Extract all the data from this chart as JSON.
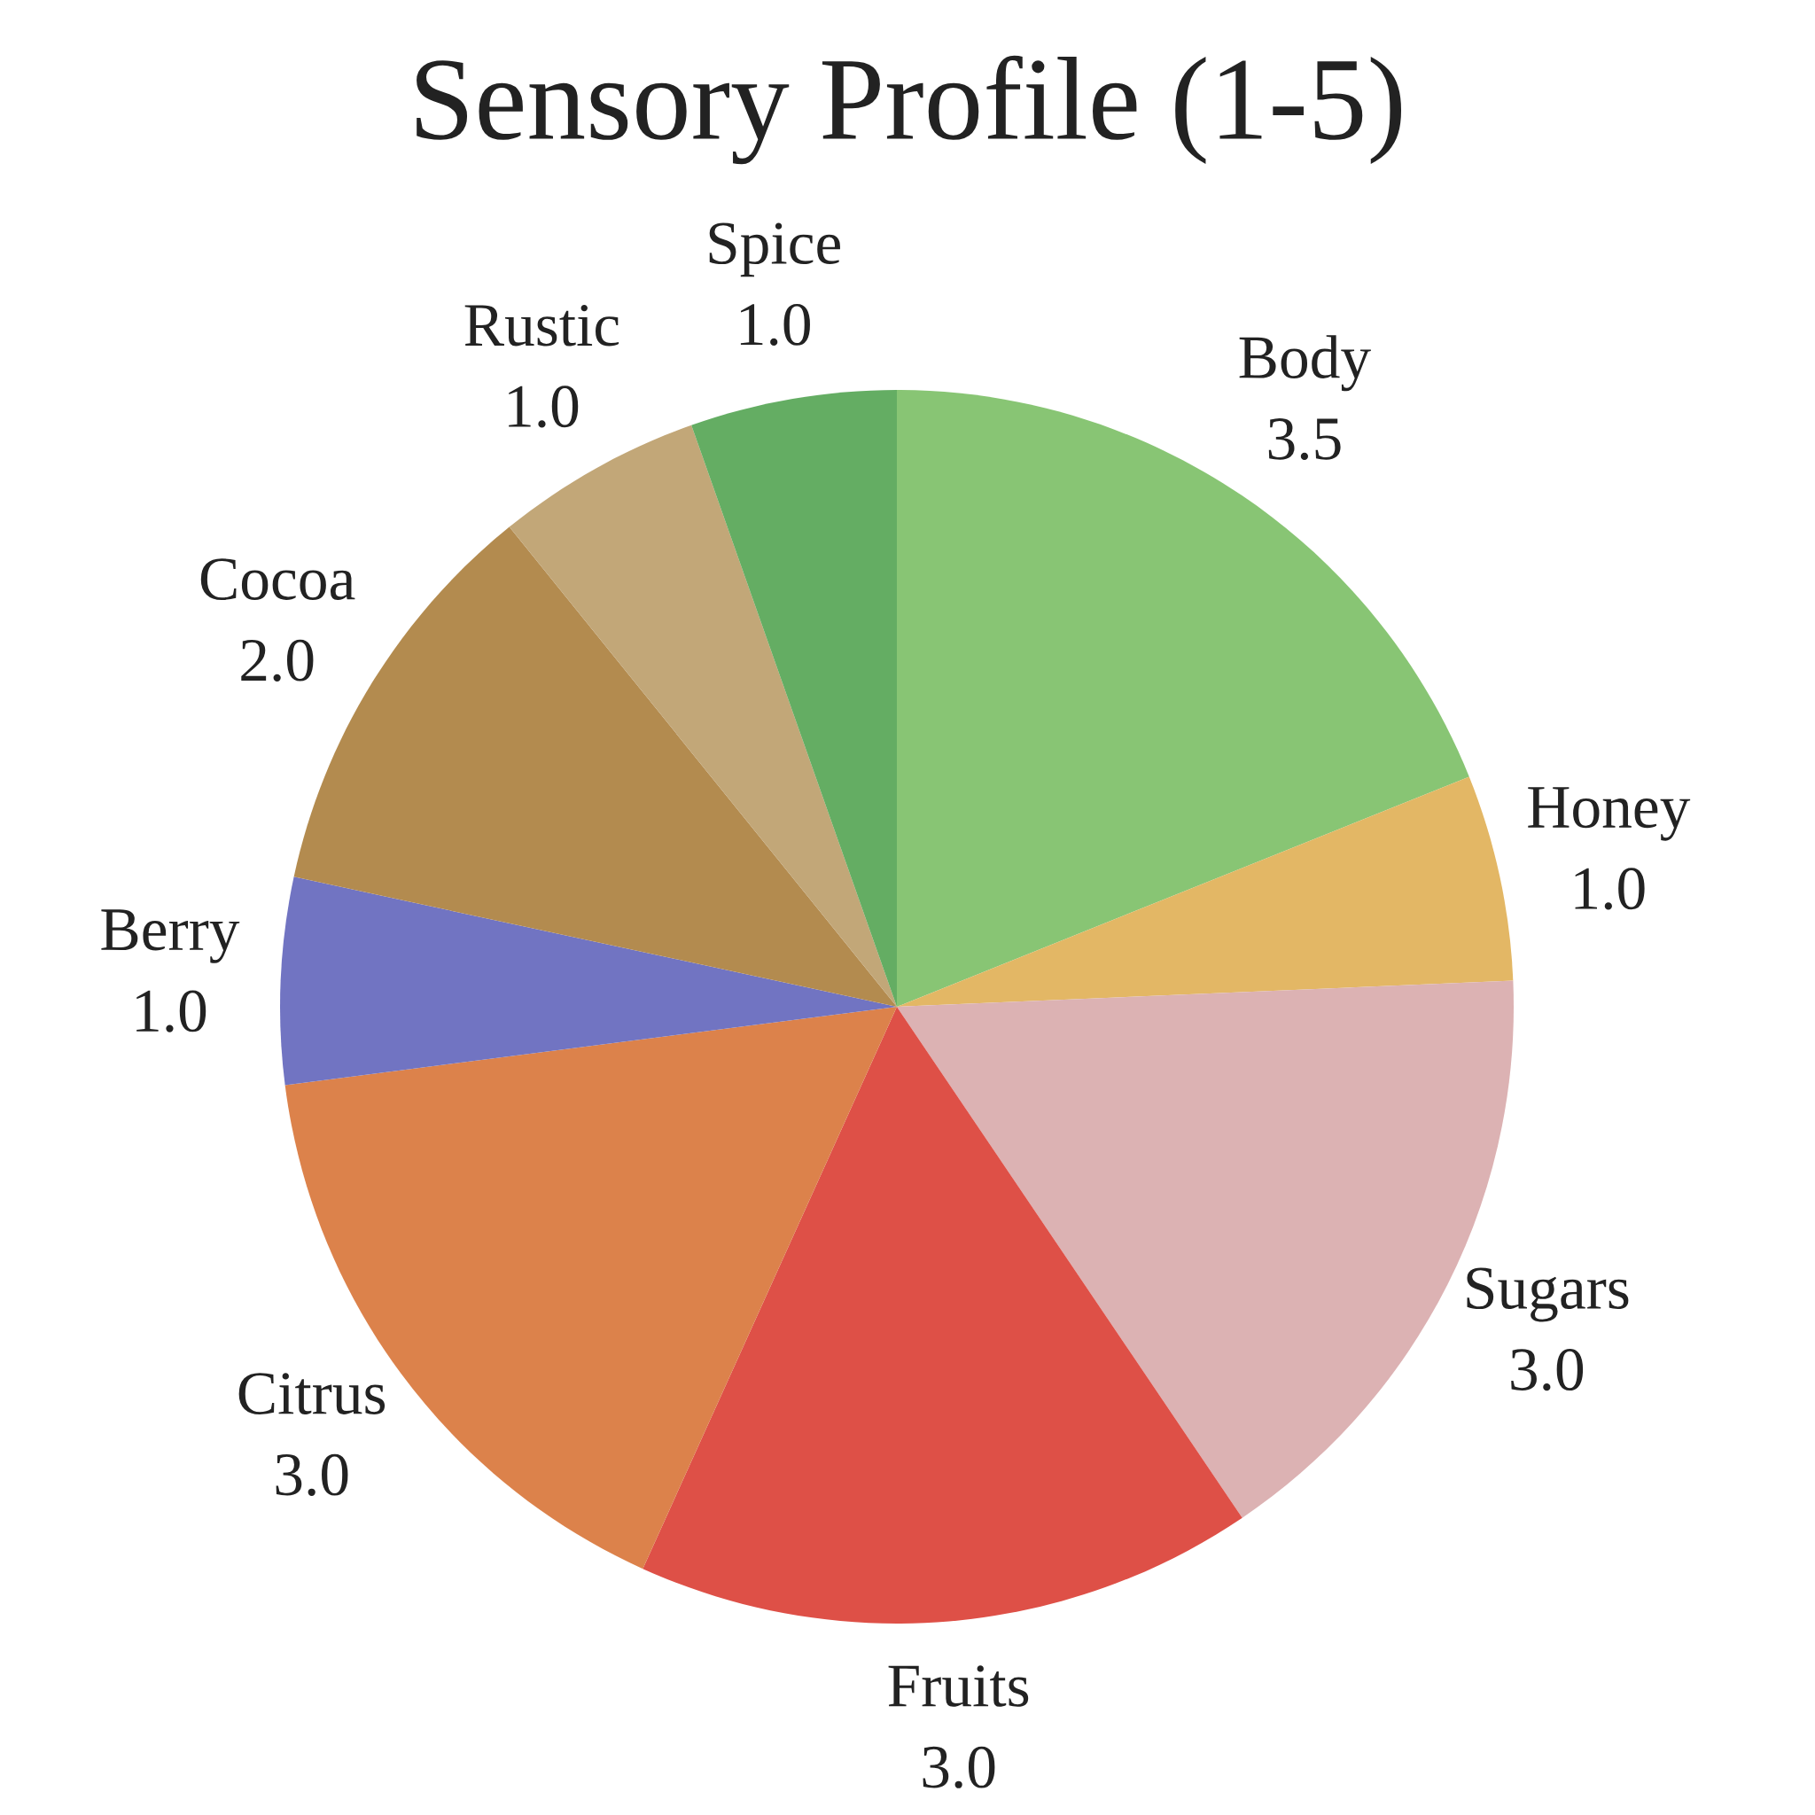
{
  "chart_data": {
    "type": "pie",
    "title": "Sensory Profile (1-5)",
    "categories": [
      "Body",
      "Honey",
      "Sugars",
      "Fruits",
      "Citrus",
      "Berry",
      "Cocoa",
      "Rustic",
      "Spice"
    ],
    "values": [
      3.5,
      1.0,
      3.0,
      3.0,
      3.0,
      1.0,
      2.0,
      1.0,
      1.0
    ],
    "value_labels": [
      "3.5",
      "1.0",
      "3.0",
      "3.0",
      "3.0",
      "1.0",
      "2.0",
      "1.0",
      "1.0"
    ],
    "colors": [
      "#88c574",
      "#e3b765",
      "#dcb2b3",
      "#de5047",
      "#dc824b",
      "#7174c2",
      "#b38b4f",
      "#c2a778",
      "#64ad63"
    ]
  }
}
